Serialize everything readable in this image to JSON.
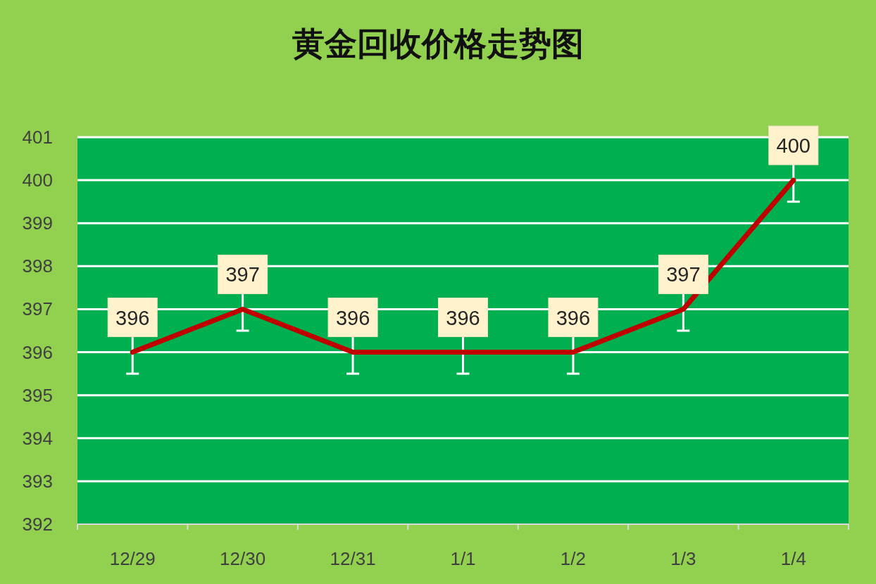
{
  "chart_data": {
    "type": "line",
    "title": "黄金回收价格走势图",
    "categories": [
      "12/29",
      "12/30",
      "12/31",
      "1/1",
      "1/2",
      "1/3",
      "1/4"
    ],
    "series": [
      {
        "color": "#c00000",
        "values": [
          396,
          397,
          396,
          396,
          396,
          397,
          400
        ],
        "errors": [
          0.5,
          0.5,
          0.5,
          0.5,
          0.5,
          0.5,
          0.5
        ]
      }
    ],
    "ylim": [
      392,
      401
    ],
    "yticks": [
      392,
      393,
      394,
      395,
      396,
      397,
      398,
      399,
      400,
      401
    ],
    "grid": "y",
    "data_labels": true
  }
}
